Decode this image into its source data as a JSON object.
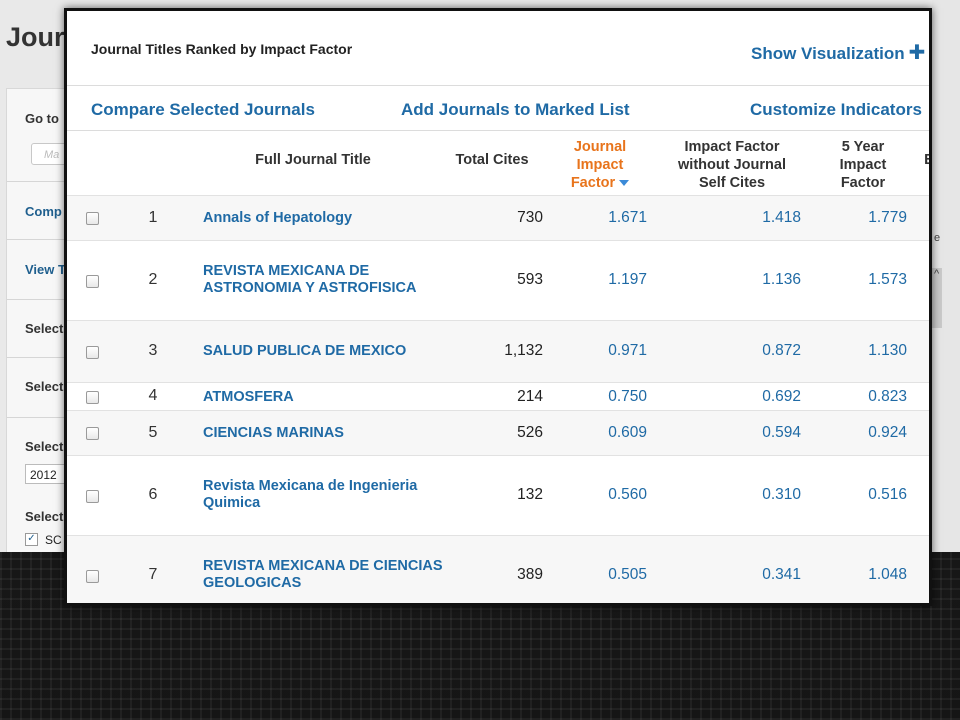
{
  "background_page": {
    "title": "Journ",
    "sidebar": [
      "Go to",
      "Comp",
      "View T",
      "Select",
      "Select",
      "Select",
      "Select"
    ],
    "goto_placeholder": "Ma",
    "year_value": "2012",
    "checkbox_label": "SC",
    "right_edge_glyphs": [
      "e",
      "^"
    ]
  },
  "popup": {
    "title": "Journal Titles Ranked by Impact Factor",
    "show_visualization": "Show Visualization",
    "actions": {
      "compare": "Compare Selected Journals",
      "add_marked": "Add Journals to Marked List",
      "customize": "Customize Indicators"
    },
    "columns": {
      "title": "Full Journal Title",
      "total_cites": "Total Cites",
      "jif": "Journal Impact Factor",
      "jif_without_self": "Impact Factor without Journal Self Cites",
      "five_year": "5 Year Impact Factor",
      "next_truncated": "E"
    },
    "rows": [
      {
        "rank": "1",
        "title": "Annals of Hepatology",
        "total_cites": "730",
        "jif": "1.671",
        "jif_without_self": "1.418",
        "five_year": "1.779"
      },
      {
        "rank": "2",
        "title": "REVISTA MEXICANA DE ASTRONOMIA Y ASTROFISICA",
        "total_cites": "593",
        "jif": "1.197",
        "jif_without_self": "1.136",
        "five_year": "1.573"
      },
      {
        "rank": "3",
        "title": "SALUD PUBLICA DE MEXICO",
        "total_cites": "1,132",
        "jif": "0.971",
        "jif_without_self": "0.872",
        "five_year": "1.130"
      },
      {
        "rank": "4",
        "title": "ATMOSFERA",
        "total_cites": "214",
        "jif": "0.750",
        "jif_without_self": "0.692",
        "five_year": "0.823"
      },
      {
        "rank": "5",
        "title": "CIENCIAS MARINAS",
        "total_cites": "526",
        "jif": "0.609",
        "jif_without_self": "0.594",
        "five_year": "0.924"
      },
      {
        "rank": "6",
        "title": "Revista Mexicana de Ingenieria Quimica",
        "total_cites": "132",
        "jif": "0.560",
        "jif_without_self": "0.310",
        "five_year": "0.516"
      },
      {
        "rank": "7",
        "title": "REVISTA MEXICANA DE CIENCIAS GEOLOGICAS",
        "total_cites": "389",
        "jif": "0.505",
        "jif_without_self": "0.341",
        "five_year": "1.048"
      }
    ]
  },
  "colors": {
    "link_blue": "#1f6aa5",
    "sorted_column_orange": "#e8741c",
    "frame_black": "#111111"
  }
}
